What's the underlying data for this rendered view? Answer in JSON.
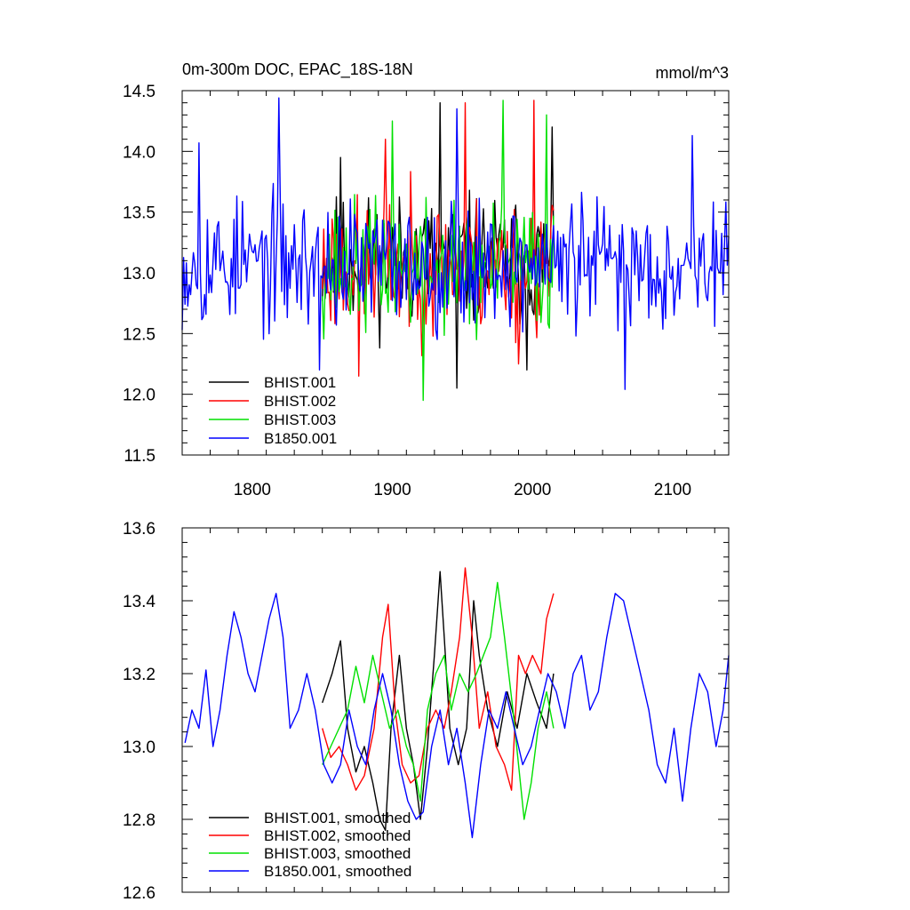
{
  "colors": {
    "BHIST.001": "#000000",
    "BHIST.002": "#ff0000",
    "BHIST.003": "#00e000",
    "B1850.001": "#0000ff"
  },
  "chart_data": [
    {
      "type": "line",
      "title": "0m-300m DOC, EPAC_18S-18N",
      "units": "mmol/m^3",
      "xlabel": "",
      "ylabel": "",
      "xlim": [
        1750,
        2140
      ],
      "ylim": [
        11.5,
        14.5
      ],
      "x_ticks": [
        "1800",
        "1900",
        "2000",
        "2100"
      ],
      "y_ticks": [
        "11.5",
        "12.0",
        "12.5",
        "13.0",
        "13.5",
        "14.0",
        "14.5"
      ],
      "x_tick_values": [
        1800,
        1900,
        2000,
        2100
      ],
      "y_tick_values": [
        11.5,
        12.0,
        12.5,
        13.0,
        13.5,
        14.0,
        14.5
      ],
      "legend_position": "bottom-left",
      "series": [
        {
          "name": "BHIST.001",
          "x_start": 1850,
          "x_end": 2015,
          "mean": 13.1,
          "amplitude": 0.42,
          "noise_seed": 11,
          "extremes": [
            [
              1863,
              13.95
            ],
            [
              1934,
              14.4
            ],
            [
              1946,
              12.05
            ],
            [
              2014,
              14.2
            ],
            [
              1996,
              12.2
            ]
          ]
        },
        {
          "name": "BHIST.002",
          "x_start": 1850,
          "x_end": 2015,
          "mean": 13.05,
          "amplitude": 0.45,
          "noise_seed": 23,
          "extremes": [
            [
              1876,
              12.15
            ],
            [
              1895,
              14.1
            ],
            [
              1952,
              14.4
            ],
            [
              2001,
              14.42
            ],
            [
              1990,
              12.25
            ]
          ]
        },
        {
          "name": "BHIST.003",
          "x_start": 1850,
          "x_end": 2015,
          "mean": 13.05,
          "amplitude": 0.42,
          "noise_seed": 37,
          "extremes": [
            [
              1922,
              11.95
            ],
            [
              1900,
              14.25
            ],
            [
              1979,
              14.42
            ],
            [
              2010,
              14.3
            ],
            [
              1960,
              12.45
            ]
          ]
        },
        {
          "name": "B1850.001",
          "x_start": 1750,
          "x_end": 2140,
          "mean": 13.08,
          "amplitude": 0.42,
          "noise_seed": 53,
          "extremes": [
            [
              1819,
              14.44
            ],
            [
              1762,
              14.07
            ],
            [
              1848,
              12.2
            ],
            [
              1946,
              14.35
            ],
            [
              2066,
              12.04
            ],
            [
              2114,
              14.13
            ]
          ]
        }
      ]
    },
    {
      "type": "line",
      "title": "",
      "units": "",
      "xlabel": "",
      "ylabel": "",
      "xlim": [
        1750,
        2140
      ],
      "ylim": [
        12.6,
        13.6
      ],
      "x_ticks": [],
      "y_ticks": [
        "12.6",
        "12.8",
        "13.0",
        "13.2",
        "13.4",
        "13.6"
      ],
      "x_tick_values": [
        1800,
        1900,
        2000,
        2100
      ],
      "y_tick_values": [
        12.6,
        12.8,
        13.0,
        13.2,
        13.4,
        13.6
      ],
      "legend_position": "bottom-left",
      "series": [
        {
          "name": "BHIST.001, smoothed",
          "x_start": 1850,
          "x_end": 2015,
          "points": [
            [
              1850,
              13.12
            ],
            [
              1857,
              13.2
            ],
            [
              1863,
              13.29
            ],
            [
              1868,
              13.05
            ],
            [
              1874,
              12.93
            ],
            [
              1880,
              13.0
            ],
            [
              1886,
              12.9
            ],
            [
              1891,
              12.8
            ],
            [
              1895,
              12.77
            ],
            [
              1899,
              13.05
            ],
            [
              1905,
              13.25
            ],
            [
              1910,
              13.05
            ],
            [
              1915,
              12.95
            ],
            [
              1920,
              12.8
            ],
            [
              1925,
              13.0
            ],
            [
              1930,
              13.25
            ],
            [
              1934,
              13.48
            ],
            [
              1937,
              13.3
            ],
            [
              1941,
              13.05
            ],
            [
              1947,
              12.95
            ],
            [
              1953,
              13.05
            ],
            [
              1958,
              13.4
            ],
            [
              1962,
              13.25
            ],
            [
              1968,
              13.1
            ],
            [
              1975,
              13.0
            ],
            [
              1982,
              13.15
            ],
            [
              1989,
              13.05
            ],
            [
              1996,
              13.2
            ],
            [
              2003,
              13.12
            ],
            [
              2010,
              13.05
            ],
            [
              2015,
              13.2
            ]
          ]
        },
        {
          "name": "BHIST.002, smoothed",
          "x_start": 1850,
          "x_end": 2015,
          "points": [
            [
              1850,
              13.05
            ],
            [
              1856,
              12.97
            ],
            [
              1862,
              13.0
            ],
            [
              1868,
              12.95
            ],
            [
              1874,
              12.88
            ],
            [
              1880,
              12.92
            ],
            [
              1887,
              13.05
            ],
            [
              1893,
              13.3
            ],
            [
              1897,
              13.39
            ],
            [
              1902,
              13.1
            ],
            [
              1907,
              12.95
            ],
            [
              1913,
              12.9
            ],
            [
              1919,
              12.92
            ],
            [
              1925,
              13.05
            ],
            [
              1931,
              13.1
            ],
            [
              1937,
              13.05
            ],
            [
              1942,
              13.15
            ],
            [
              1948,
              13.3
            ],
            [
              1952,
              13.49
            ],
            [
              1957,
              13.3
            ],
            [
              1962,
              13.05
            ],
            [
              1968,
              13.15
            ],
            [
              1974,
              13.0
            ],
            [
              1980,
              12.95
            ],
            [
              1985,
              12.88
            ],
            [
              1990,
              13.25
            ],
            [
              1995,
              13.2
            ],
            [
              2000,
              13.25
            ],
            [
              2006,
              13.2
            ],
            [
              2010,
              13.35
            ],
            [
              2015,
              13.42
            ]
          ]
        },
        {
          "name": "BHIST.003, smoothed",
          "x_start": 1850,
          "x_end": 2015,
          "points": [
            [
              1850,
              12.95
            ],
            [
              1856,
              13.0
            ],
            [
              1862,
              13.05
            ],
            [
              1868,
              13.1
            ],
            [
              1874,
              13.22
            ],
            [
              1880,
              13.12
            ],
            [
              1886,
              13.25
            ],
            [
              1892,
              13.15
            ],
            [
              1898,
              13.05
            ],
            [
              1904,
              13.1
            ],
            [
              1910,
              13.0
            ],
            [
              1915,
              12.95
            ],
            [
              1920,
              12.85
            ],
            [
              1925,
              13.1
            ],
            [
              1931,
              13.2
            ],
            [
              1937,
              13.25
            ],
            [
              1942,
              13.1
            ],
            [
              1948,
              13.2
            ],
            [
              1954,
              13.15
            ],
            [
              1960,
              13.2
            ],
            [
              1965,
              13.25
            ],
            [
              1970,
              13.3
            ],
            [
              1975,
              13.45
            ],
            [
              1980,
              13.3
            ],
            [
              1986,
              13.1
            ],
            [
              1990,
              12.95
            ],
            [
              1994,
              12.8
            ],
            [
              1999,
              12.9
            ],
            [
              2004,
              13.05
            ],
            [
              2010,
              13.15
            ],
            [
              2015,
              13.05
            ]
          ]
        },
        {
          "name": "B1850.001, smoothed",
          "x_start": 1750,
          "x_end": 2140,
          "points": [
            [
              1752,
              13.01
            ],
            [
              1757,
              13.1
            ],
            [
              1762,
              13.05
            ],
            [
              1767,
              13.21
            ],
            [
              1772,
              13.0
            ],
            [
              1777,
              13.1
            ],
            [
              1782,
              13.25
            ],
            [
              1787,
              13.37
            ],
            [
              1792,
              13.3
            ],
            [
              1797,
              13.2
            ],
            [
              1802,
              13.15
            ],
            [
              1807,
              13.25
            ],
            [
              1812,
              13.35
            ],
            [
              1817,
              13.42
            ],
            [
              1822,
              13.3
            ],
            [
              1827,
              13.05
            ],
            [
              1833,
              13.1
            ],
            [
              1839,
              13.2
            ],
            [
              1845,
              13.1
            ],
            [
              1851,
              12.95
            ],
            [
              1857,
              12.9
            ],
            [
              1863,
              12.95
            ],
            [
              1869,
              13.1
            ],
            [
              1875,
              13.0
            ],
            [
              1881,
              12.95
            ],
            [
              1887,
              13.1
            ],
            [
              1893,
              13.2
            ],
            [
              1899,
              13.1
            ],
            [
              1905,
              12.95
            ],
            [
              1911,
              12.85
            ],
            [
              1917,
              12.8
            ],
            [
              1922,
              12.82
            ],
            [
              1928,
              13.0
            ],
            [
              1934,
              13.1
            ],
            [
              1940,
              12.95
            ],
            [
              1946,
              13.05
            ],
            [
              1952,
              12.9
            ],
            [
              1957,
              12.75
            ],
            [
              1963,
              12.95
            ],
            [
              1969,
              13.1
            ],
            [
              1975,
              13.05
            ],
            [
              1981,
              13.15
            ],
            [
              1987,
              13.05
            ],
            [
              1993,
              12.95
            ],
            [
              1999,
              13.0
            ],
            [
              2005,
              13.1
            ],
            [
              2011,
              13.2
            ],
            [
              2017,
              13.15
            ],
            [
              2023,
              13.05
            ],
            [
              2029,
              13.2
            ],
            [
              2035,
              13.25
            ],
            [
              2041,
              13.1
            ],
            [
              2047,
              13.15
            ],
            [
              2053,
              13.3
            ],
            [
              2059,
              13.42
            ],
            [
              2065,
              13.4
            ],
            [
              2071,
              13.3
            ],
            [
              2077,
              13.2
            ],
            [
              2083,
              13.1
            ],
            [
              2089,
              12.95
            ],
            [
              2095,
              12.9
            ],
            [
              2101,
              13.05
            ],
            [
              2107,
              12.85
            ],
            [
              2113,
              13.05
            ],
            [
              2119,
              13.2
            ],
            [
              2125,
              13.15
            ],
            [
              2131,
              13.0
            ],
            [
              2136,
              13.1
            ],
            [
              2140,
              13.25
            ]
          ]
        }
      ]
    }
  ]
}
